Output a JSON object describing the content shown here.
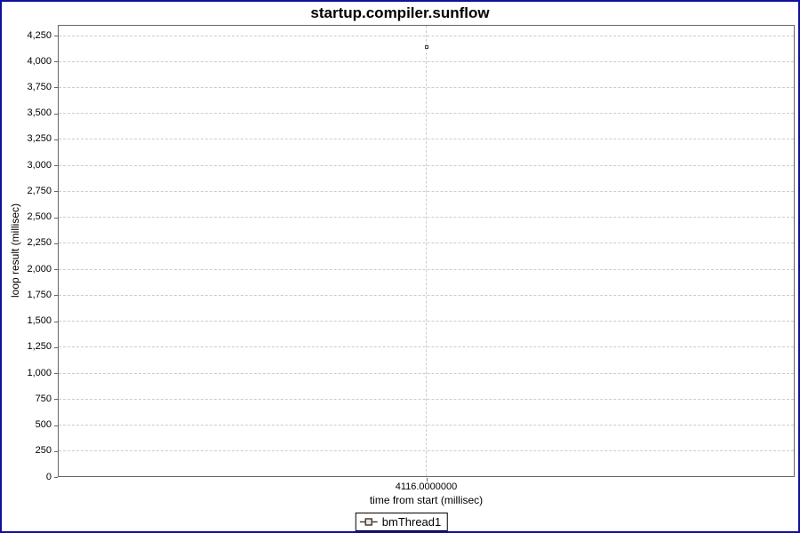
{
  "window": {
    "border_color": "#1010a0",
    "background_color": "#ffffff",
    "plot_border_color": "#666666",
    "gridline_color": "#cccccc"
  },
  "chart_data": {
    "type": "scatter",
    "title": "startup.compiler.sunflow",
    "xlabel": "time from start (millisec)",
    "ylabel": "loop result (millisec)",
    "series": [
      {
        "name": "bmThread1",
        "points": [
          {
            "x": 4116.0,
            "y": 4135
          }
        ]
      }
    ],
    "x_tick_labels": [
      "4116.0000000"
    ],
    "y_ticks": [
      0,
      250,
      500,
      750,
      1000,
      1250,
      1500,
      1750,
      2000,
      2250,
      2500,
      2750,
      3000,
      3250,
      3500,
      3750,
      4000,
      4250
    ],
    "y_tick_labels": [
      "0",
      "250",
      "500",
      "750",
      "1,000",
      "1,250",
      "1,500",
      "1,750",
      "2,000",
      "2,250",
      "2,500",
      "2,750",
      "3,000",
      "3,250",
      "3,500",
      "3,750",
      "4,000",
      "4,250"
    ],
    "ylim": [
      0,
      4250
    ],
    "grid": true,
    "legend_position": "bottom",
    "marker": {
      "shape": "square",
      "outline_color": "#573a33",
      "fill_color": "#dcede2",
      "line_color": "#573a33"
    }
  },
  "legend": {
    "items": [
      {
        "label": "bmThread1"
      }
    ]
  }
}
